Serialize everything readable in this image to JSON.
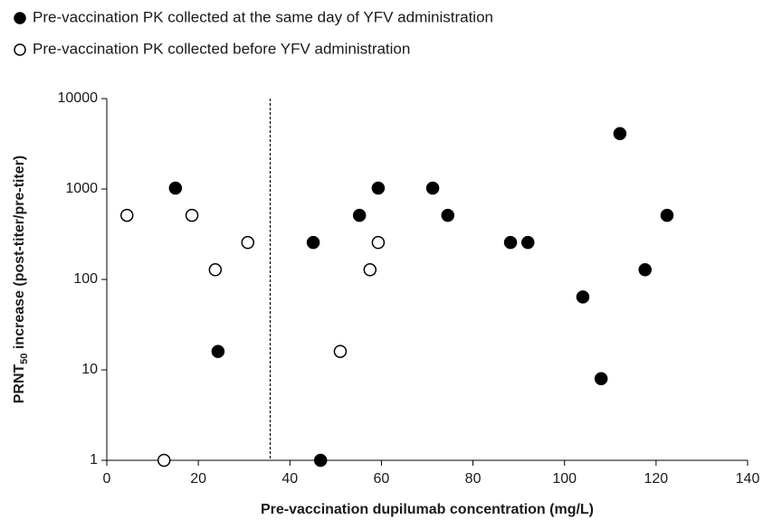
{
  "chart_data": {
    "type": "scatter",
    "x_label": "Pre-vaccination dupilumab concentration (mg/L)",
    "y_label": {
      "main": "PRNT",
      "sub": "50",
      "rest": " increase (post-titer/pre-titer)"
    },
    "xlim": [
      0,
      140
    ],
    "xticks": [
      0,
      20,
      40,
      60,
      80,
      100,
      120,
      140
    ],
    "ylim": [
      1,
      10000
    ],
    "yticks": [
      1,
      10,
      100,
      1000,
      10000
    ],
    "log_y": true,
    "reference_x": 35.7,
    "series": [
      {
        "name": "Pre-vaccination PK collected at the same day of YFV administration",
        "color": "#000000",
        "marker": "filled",
        "x": [
          15,
          24.3,
          45.1,
          46.7,
          55.2,
          59.3,
          71.2,
          74.5,
          88.2,
          92.0,
          104.0,
          108.0,
          112.1,
          117.6,
          122.4
        ],
        "values": [
          1024,
          16,
          256,
          1,
          512,
          1024,
          1024,
          512,
          256,
          256,
          64,
          8,
          4096,
          128,
          512
        ]
      },
      {
        "name": "Pre-vaccination PK collected before YFV administration",
        "color": "#000000",
        "marker": "open",
        "x": [
          4.4,
          12.5,
          18.6,
          23.7,
          30.8,
          51.0,
          57.5,
          59.3
        ],
        "values": [
          512,
          1,
          512,
          128,
          256,
          16,
          128,
          256
        ]
      }
    ]
  }
}
